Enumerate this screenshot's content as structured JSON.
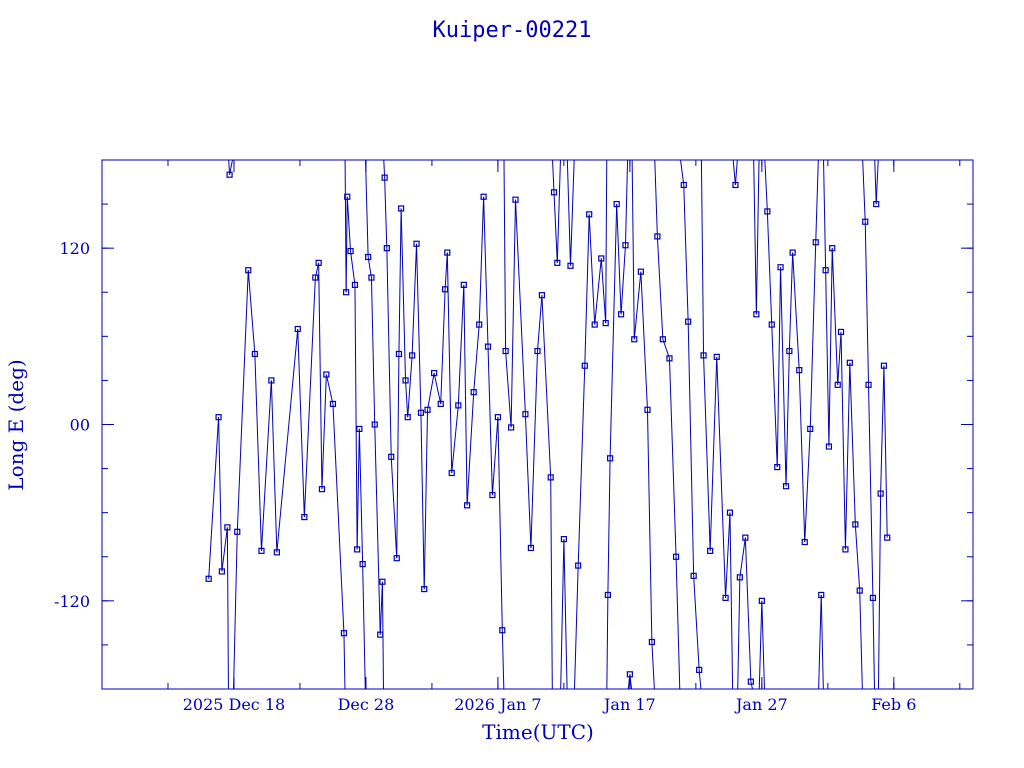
{
  "chart_data": {
    "type": "scatter",
    "title": "Kuiper-00221",
    "xlabel": "Time(UTC)",
    "ylabel": "Long E (deg)",
    "x_tick_labels": [
      "2025 Dec 18",
      "Dec 28",
      "2026 Jan  7",
      "Jan 17",
      "Jan 27",
      "Feb  6"
    ],
    "x_tick_dates": [
      "2025-12-18",
      "2025-12-28",
      "2026-01-07",
      "2026-01-17",
      "2026-01-27",
      "2026-02-06"
    ],
    "xlim": [
      "2025-12-08T00:00",
      "2026-02-12T00:00"
    ],
    "y_tick_labels": [
      "-120",
      "00",
      "120"
    ],
    "y_tick_values": [
      -120,
      0,
      120
    ],
    "ylim": [
      -180,
      180
    ],
    "grid": false,
    "legend": "none",
    "color": "#0000b4",
    "line_connected": true,
    "series": [
      {
        "values": [
          [
            "2025-12-16T02:00",
            -105
          ],
          [
            "2025-12-16T20:00",
            5
          ],
          [
            "2025-12-17T02:00",
            -100
          ],
          [
            "2025-12-17T12:00",
            -70
          ],
          [
            "2025-12-17T16:00",
            170
          ],
          [
            "2025-12-18T06:00",
            -73
          ],
          [
            "2025-12-19T02:00",
            105
          ],
          [
            "2025-12-19T14:00",
            48
          ],
          [
            "2025-12-20T02:00",
            -86
          ],
          [
            "2025-12-20T20:00",
            30
          ],
          [
            "2025-12-21T06:00",
            -87
          ],
          [
            "2025-12-22T20:00",
            65
          ],
          [
            "2025-12-23T08:00",
            -63
          ],
          [
            "2025-12-24T04:00",
            100
          ],
          [
            "2025-12-24T10:00",
            110
          ],
          [
            "2025-12-24T16:00",
            -44
          ],
          [
            "2025-12-25T00:00",
            34
          ],
          [
            "2025-12-25T12:00",
            14
          ],
          [
            "2025-12-26T08:00",
            -142
          ],
          [
            "2025-12-26T12:00",
            90
          ],
          [
            "2025-12-26T14:00",
            155
          ],
          [
            "2025-12-26T20:00",
            118
          ],
          [
            "2025-12-27T04:00",
            95
          ],
          [
            "2025-12-27T08:00",
            -85
          ],
          [
            "2025-12-27T12:00",
            -3
          ],
          [
            "2025-12-27T18:00",
            -95
          ],
          [
            "2025-12-28T04:00",
            114
          ],
          [
            "2025-12-28T10:00",
            100
          ],
          [
            "2025-12-28T16:00",
            0
          ],
          [
            "2025-12-29T02:00",
            -143
          ],
          [
            "2025-12-29T06:00",
            -107
          ],
          [
            "2025-12-29T10:00",
            168
          ],
          [
            "2025-12-29T14:00",
            120
          ],
          [
            "2025-12-29T22:00",
            -22
          ],
          [
            "2025-12-30T08:00",
            -91
          ],
          [
            "2025-12-30T12:00",
            48
          ],
          [
            "2025-12-30T16:00",
            147
          ],
          [
            "2025-12-31T00:00",
            30
          ],
          [
            "2025-12-31T04:00",
            5
          ],
          [
            "2025-12-31T12:00",
            47
          ],
          [
            "2025-12-31T20:00",
            123
          ],
          [
            "2026-01-01T04:00",
            8
          ],
          [
            "2026-01-01T10:00",
            -112
          ],
          [
            "2026-01-01T16:00",
            10
          ],
          [
            "2026-01-02T04:00",
            35
          ],
          [
            "2026-01-02T16:00",
            14
          ],
          [
            "2026-01-03T00:00",
            92
          ],
          [
            "2026-01-03T04:00",
            117
          ],
          [
            "2026-01-03T12:00",
            -33
          ],
          [
            "2026-01-04T00:00",
            13
          ],
          [
            "2026-01-04T10:00",
            95
          ],
          [
            "2026-01-04T16:00",
            -55
          ],
          [
            "2026-01-05T04:00",
            22
          ],
          [
            "2026-01-05T14:00",
            68
          ],
          [
            "2026-01-05T22:00",
            155
          ],
          [
            "2026-01-06T06:00",
            53
          ],
          [
            "2026-01-06T14:00",
            -48
          ],
          [
            "2026-01-07T00:00",
            5
          ],
          [
            "2026-01-07T08:00",
            -140
          ],
          [
            "2026-01-07T14:00",
            50
          ],
          [
            "2026-01-08T00:00",
            -2
          ],
          [
            "2026-01-08T08:00",
            153
          ],
          [
            "2026-01-09T02:00",
            7
          ],
          [
            "2026-01-09T12:00",
            -84
          ],
          [
            "2026-01-10T00:00",
            50
          ],
          [
            "2026-01-10T08:00",
            88
          ],
          [
            "2026-01-11T00:00",
            -36
          ],
          [
            "2026-01-11T06:00",
            158
          ],
          [
            "2026-01-11T12:00",
            110
          ],
          [
            "2026-01-12T00:00",
            -78
          ],
          [
            "2026-01-12T12:00",
            108
          ],
          [
            "2026-01-13T02:00",
            -96
          ],
          [
            "2026-01-13T14:00",
            40
          ],
          [
            "2026-01-13T22:00",
            143
          ],
          [
            "2026-01-14T08:00",
            68
          ],
          [
            "2026-01-14T20:00",
            113
          ],
          [
            "2026-01-15T04:00",
            69
          ],
          [
            "2026-01-15T08:00",
            -116
          ],
          [
            "2026-01-15T12:00",
            -23
          ],
          [
            "2026-01-16T00:00",
            150
          ],
          [
            "2026-01-16T08:00",
            75
          ],
          [
            "2026-01-16T16:00",
            122
          ],
          [
            "2026-01-17T00:00",
            -170
          ],
          [
            "2026-01-17T08:00",
            58
          ],
          [
            "2026-01-17T20:00",
            104
          ],
          [
            "2026-01-18T08:00",
            10
          ],
          [
            "2026-01-18T16:00",
            -148
          ],
          [
            "2026-01-19T02:00",
            128
          ],
          [
            "2026-01-19T12:00",
            58
          ],
          [
            "2026-01-20T00:00",
            45
          ],
          [
            "2026-01-20T12:00",
            -90
          ],
          [
            "2026-01-21T02:00",
            163
          ],
          [
            "2026-01-21T10:00",
            70
          ],
          [
            "2026-01-21T20:00",
            -103
          ],
          [
            "2026-01-22T06:00",
            -167
          ],
          [
            "2026-01-22T14:00",
            47
          ],
          [
            "2026-01-23T02:00",
            -86
          ],
          [
            "2026-01-23T14:00",
            46
          ],
          [
            "2026-01-24T06:00",
            -118
          ],
          [
            "2026-01-24T14:00",
            -60
          ],
          [
            "2026-01-25T00:00",
            163
          ],
          [
            "2026-01-25T08:00",
            -104
          ],
          [
            "2026-01-25T18:00",
            -77
          ],
          [
            "2026-01-26T04:00",
            -175
          ],
          [
            "2026-01-26T14:00",
            75
          ],
          [
            "2026-01-27T00:00",
            -120
          ],
          [
            "2026-01-27T10:00",
            145
          ],
          [
            "2026-01-27T18:00",
            68
          ],
          [
            "2026-01-28T04:00",
            -29
          ],
          [
            "2026-01-28T10:00",
            107
          ],
          [
            "2026-01-28T20:00",
            -42
          ],
          [
            "2026-01-29T02:00",
            50
          ],
          [
            "2026-01-29T08:00",
            117
          ],
          [
            "2026-01-29T20:00",
            37
          ],
          [
            "2026-01-30T06:00",
            -80
          ],
          [
            "2026-01-30T16:00",
            -3
          ],
          [
            "2026-01-31T02:00",
            124
          ],
          [
            "2026-01-31T12:00",
            -116
          ],
          [
            "2026-01-31T20:00",
            105
          ],
          [
            "2026-02-01T02:00",
            -15
          ],
          [
            "2026-02-01T08:00",
            120
          ],
          [
            "2026-02-01T18:00",
            27
          ],
          [
            "2026-02-02T00:00",
            63
          ],
          [
            "2026-02-02T08:00",
            -85
          ],
          [
            "2026-02-02T16:00",
            42
          ],
          [
            "2026-02-03T02:00",
            -68
          ],
          [
            "2026-02-03T10:00",
            -113
          ],
          [
            "2026-02-03T20:00",
            138
          ],
          [
            "2026-02-04T02:00",
            27
          ],
          [
            "2026-02-04T10:00",
            -118
          ],
          [
            "2026-02-04T16:00",
            150
          ],
          [
            "2026-02-05T00:00",
            -47
          ],
          [
            "2026-02-05T06:00",
            40
          ],
          [
            "2026-02-05T12:00",
            -77
          ]
        ]
      }
    ]
  }
}
